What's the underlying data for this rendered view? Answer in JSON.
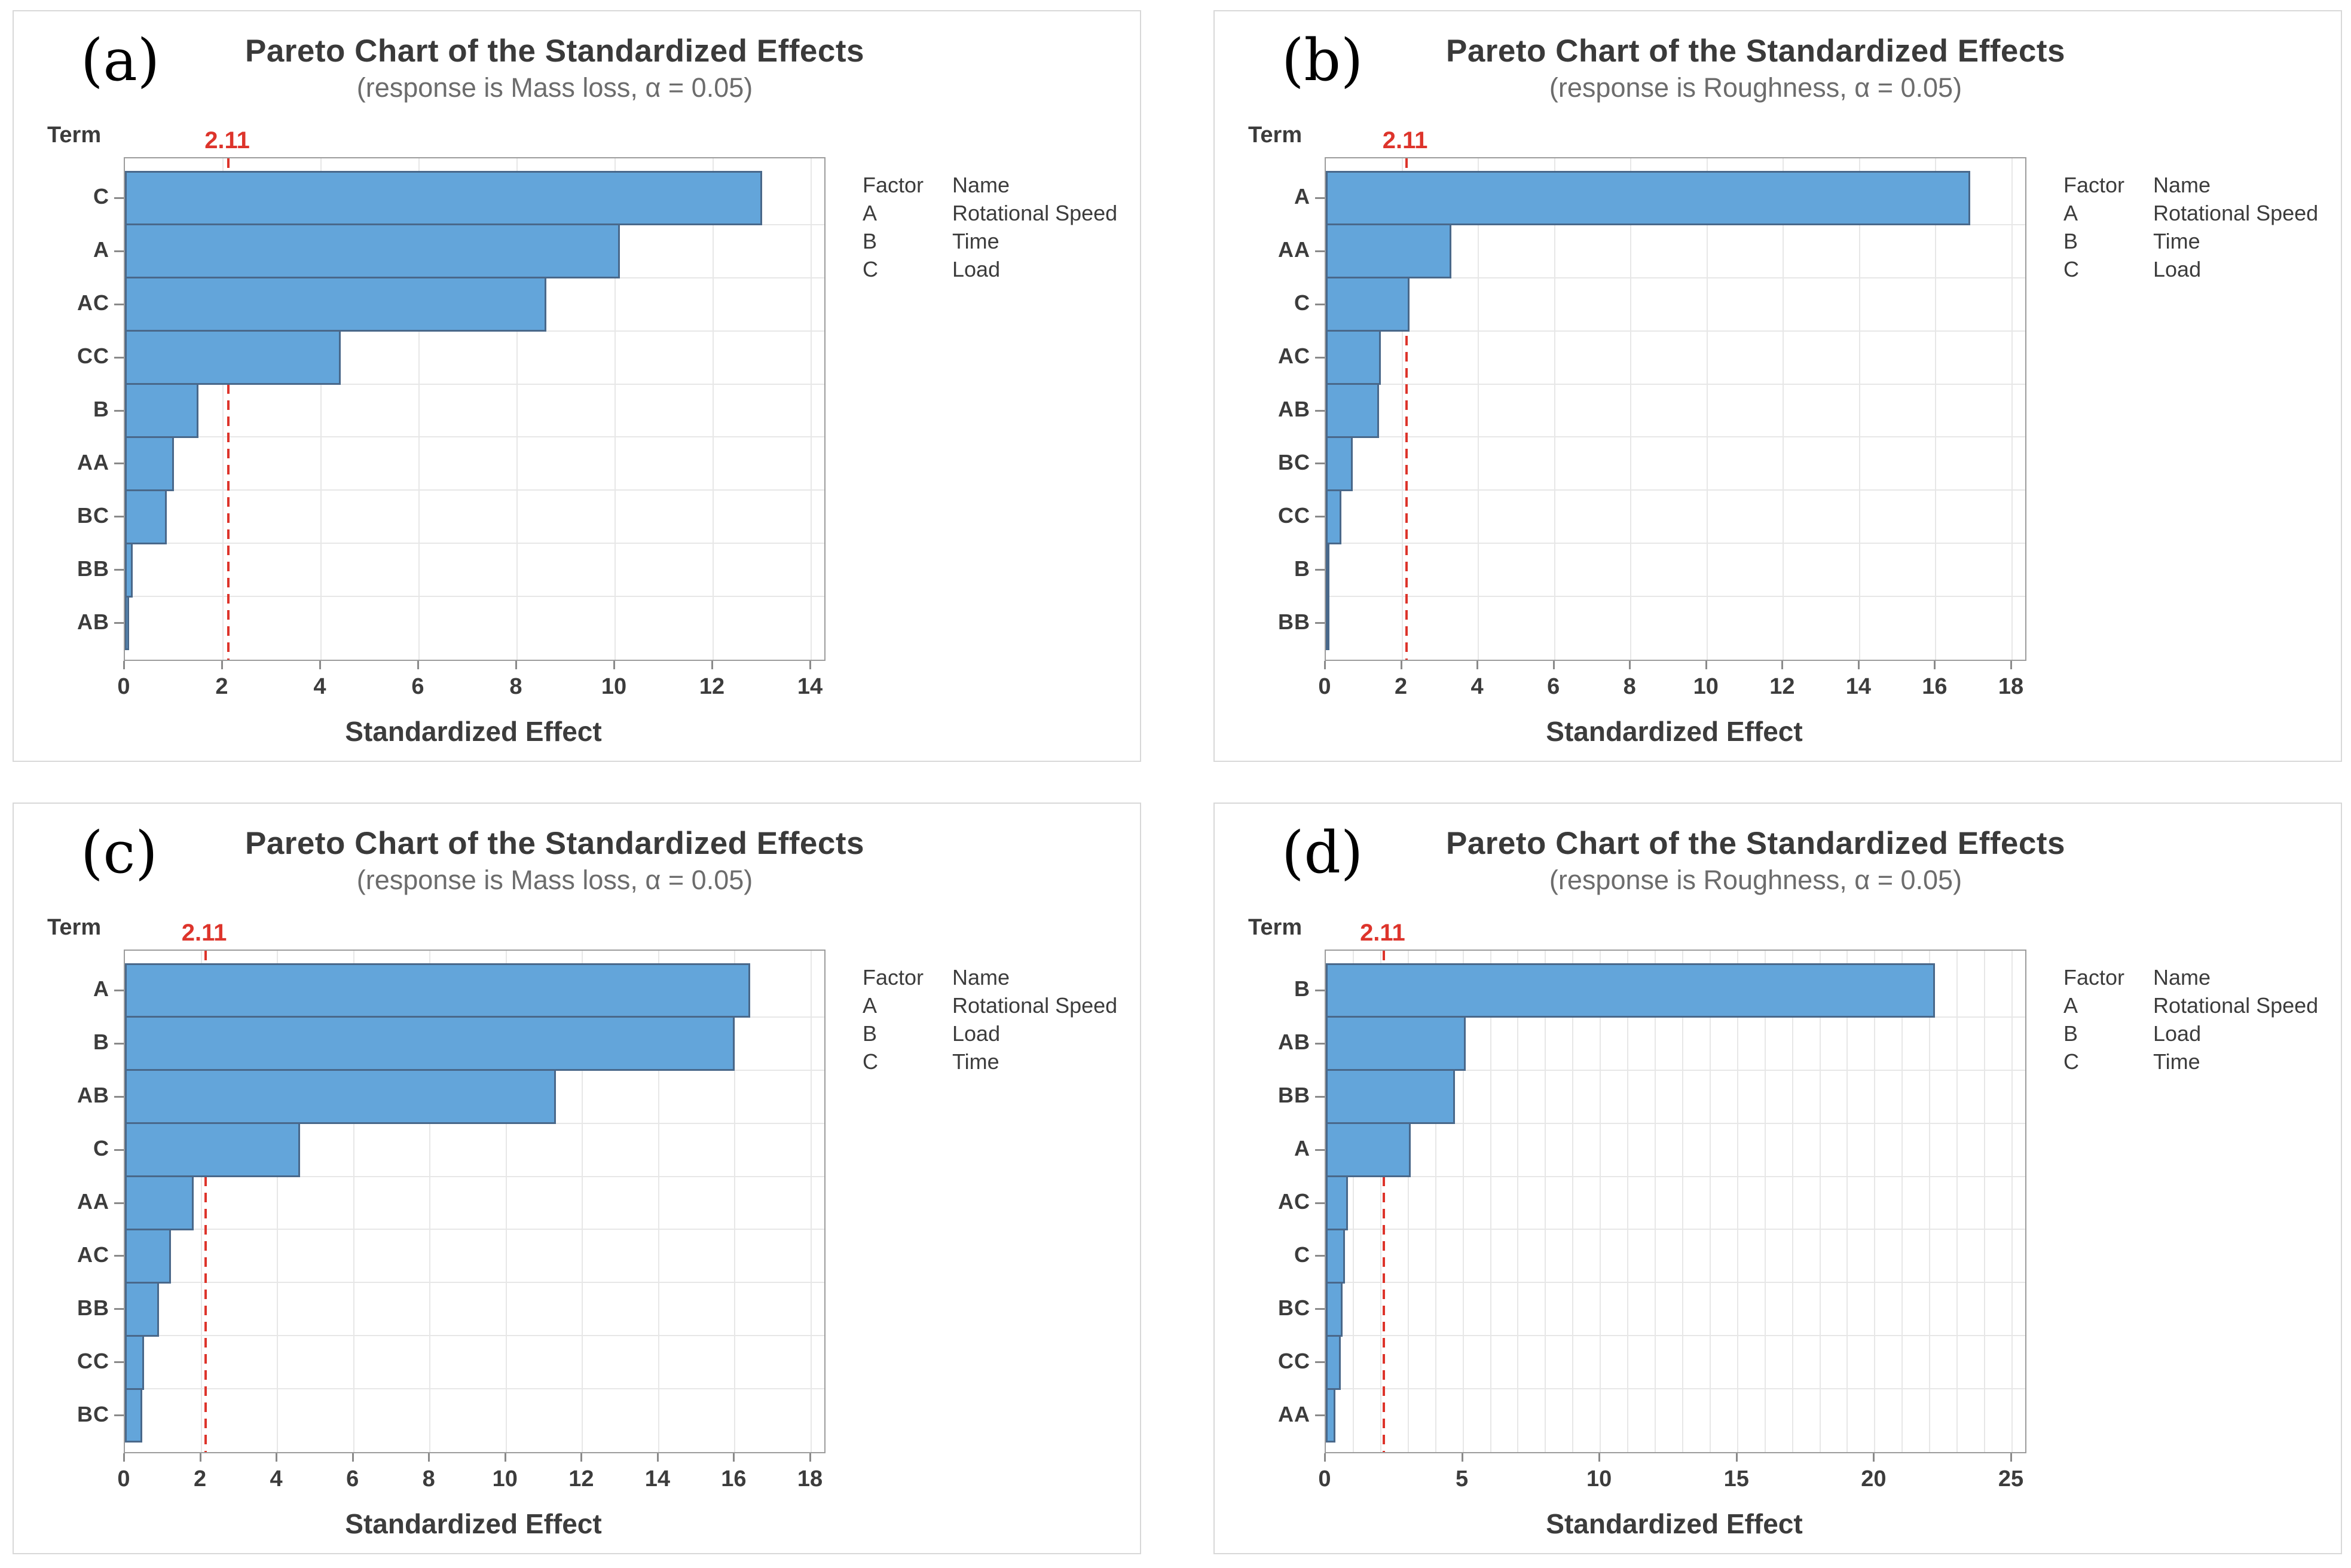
{
  "style": {
    "card-border": "#d8d8d8",
    "boxborder": "#9c9c9c",
    "grid": "#e7e7e7",
    "tick": "#8a8a8a",
    "barfill": "#63a5da",
    "baredge": "#49688a",
    "red": "#dd342b",
    "title": "#3a3a3a",
    "subtitle": "#6c6c6c",
    "textdark": "#3c3c3c"
  },
  "common": {
    "term_axis_label": "Term",
    "xlabel": "Standardized Effect",
    "ref_label": "2.11",
    "legend_headers": [
      "Factor",
      "Name"
    ]
  },
  "chart_data": [
    {
      "panel_label": "(a)",
      "type": "bar",
      "orientation": "horizontal",
      "title": "Pareto Chart of the Standardized Effects",
      "subtitle": "(response is Mass loss, α = 0.05)",
      "xlabel": "Standardized Effect",
      "ylabel": "Term",
      "reference_line": 2.11,
      "x_ticks": [
        0,
        2,
        4,
        6,
        8,
        10,
        12,
        14
      ],
      "grid_step": 2,
      "categories": [
        "C",
        "A",
        "AC",
        "CC",
        "B",
        "AA",
        "BC",
        "BB",
        "AB"
      ],
      "values": [
        13.0,
        10.1,
        8.6,
        4.4,
        1.5,
        1.0,
        0.85,
        0.16,
        0.08
      ],
      "legend_rows": [
        [
          "A",
          "Rotational Speed"
        ],
        [
          "B",
          "Time"
        ],
        [
          "C",
          "Load"
        ]
      ]
    },
    {
      "panel_label": "(b)",
      "type": "bar",
      "orientation": "horizontal",
      "title": "Pareto Chart of the Standardized Effects",
      "subtitle": "(response is Roughness, α = 0.05)",
      "xlabel": "Standardized Effect",
      "ylabel": "Term",
      "reference_line": 2.11,
      "x_ticks": [
        0,
        2,
        4,
        6,
        8,
        10,
        12,
        14,
        16,
        18
      ],
      "grid_step": 2,
      "categories": [
        "A",
        "AA",
        "C",
        "AC",
        "AB",
        "BC",
        "CC",
        "B",
        "BB"
      ],
      "values": [
        16.9,
        3.3,
        2.2,
        1.45,
        1.4,
        0.7,
        0.4,
        0.07,
        0.03
      ],
      "legend_rows": [
        [
          "A",
          "Rotational Speed"
        ],
        [
          "B",
          "Time"
        ],
        [
          "C",
          "Load"
        ]
      ]
    },
    {
      "panel_label": "(c)",
      "type": "bar",
      "orientation": "horizontal",
      "title": "Pareto Chart of the Standardized Effects",
      "subtitle": "(response is Mass loss, α = 0.05)",
      "xlabel": "Standardized Effect",
      "ylabel": "Term",
      "reference_line": 2.11,
      "x_ticks": [
        0,
        2,
        4,
        6,
        8,
        10,
        12,
        14,
        16,
        18
      ],
      "grid_step": 2,
      "categories": [
        "A",
        "B",
        "AB",
        "C",
        "AA",
        "AC",
        "BB",
        "CC",
        "BC"
      ],
      "values": [
        16.4,
        16.0,
        11.3,
        4.6,
        1.8,
        1.2,
        0.9,
        0.5,
        0.45
      ],
      "legend_rows": [
        [
          "A",
          "Rotational Speed"
        ],
        [
          "B",
          "Load"
        ],
        [
          "C",
          "Time"
        ]
      ]
    },
    {
      "panel_label": "(d)",
      "type": "bar",
      "orientation": "horizontal",
      "title": "Pareto Chart of the Standardized Effects",
      "subtitle": "(response is Roughness, α = 0.05)",
      "xlabel": "Standardized Effect",
      "ylabel": "Term",
      "reference_line": 2.11,
      "x_ticks": [
        0,
        5,
        10,
        15,
        20,
        25
      ],
      "grid_step": 1,
      "categories": [
        "B",
        "AB",
        "BB",
        "A",
        "AC",
        "C",
        "BC",
        "CC",
        "AA"
      ],
      "values": [
        22.2,
        5.1,
        4.7,
        3.1,
        0.8,
        0.7,
        0.6,
        0.55,
        0.35
      ],
      "legend_rows": [
        [
          "A",
          "Rotational Speed"
        ],
        [
          "B",
          "Load"
        ],
        [
          "C",
          "Time"
        ]
      ]
    }
  ]
}
